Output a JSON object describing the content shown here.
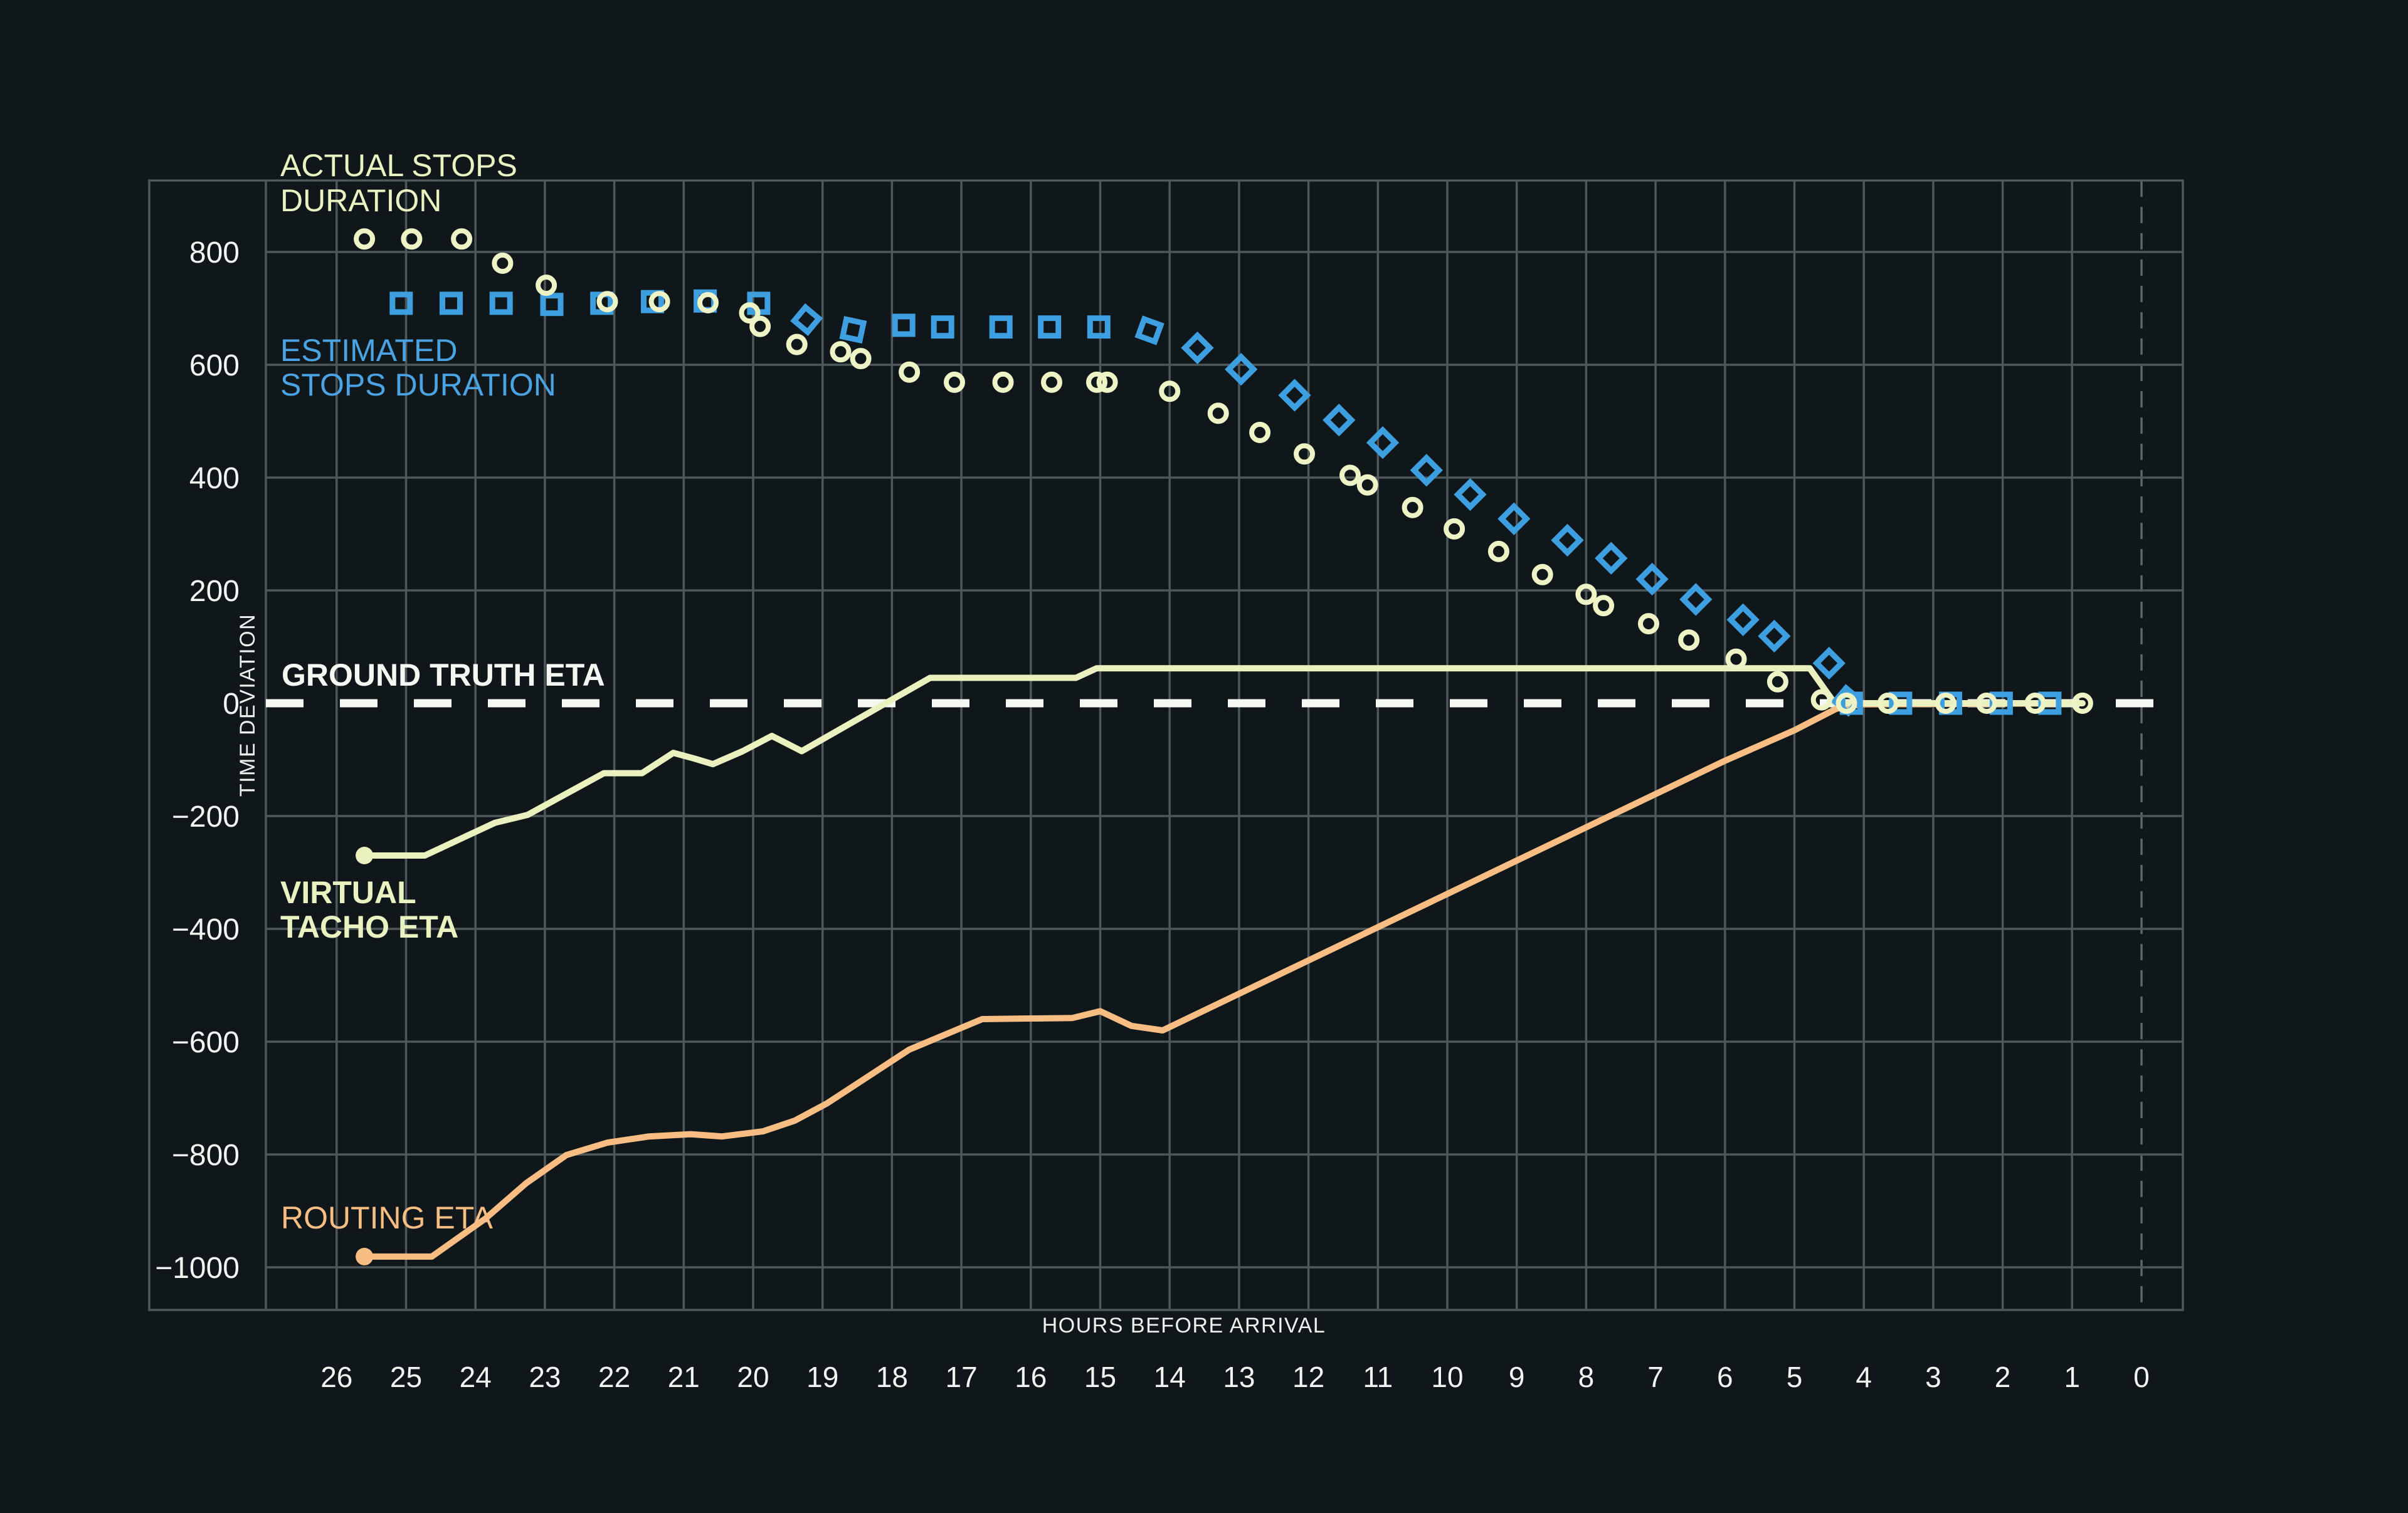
{
  "colors": {
    "background": "#0f171a",
    "grid": "#4e585a",
    "grid_dashed": "#5d6769",
    "white": "#f5f7f3",
    "yellow": "#ebf2c1",
    "blue": "#3d9fe0",
    "orange": "#f7bd83"
  },
  "labels": {
    "actual_stops_1": "ACTUAL STOPS",
    "actual_stops_2": "DURATION",
    "estimated_1": "ESTIMATED",
    "estimated_2": "STOPS DURATION",
    "ground_truth": "GROUND TRUTH ETA",
    "virtual_1": "VIRTUAL",
    "virtual_2": "TACHO ETA",
    "routing": "ROUTING ETA",
    "x_axis_title": "HOURS BEFORE ARRIVAL",
    "y_axis_title": "TIME DEVIATION"
  },
  "chart_data": {
    "type": "mixed",
    "title": "",
    "xlabel": "HOURS BEFORE ARRIVAL",
    "ylabel": "TIME DEVIATION",
    "grid": true,
    "legend_position": "labels drawn inside plot next to each series",
    "x_axis": {
      "unit": "hours before arrival, decreasing left to right",
      "ticks": [
        26,
        25,
        24,
        23,
        22,
        21,
        20,
        19,
        18,
        17,
        16,
        15,
        14,
        13,
        12,
        11,
        10,
        9,
        8,
        7,
        6,
        5,
        4,
        3,
        2,
        1,
        0
      ],
      "tick_labels": [
        "26",
        "25",
        "24",
        "23",
        "22",
        "21",
        "20",
        "19",
        "18",
        "17",
        "16",
        "15",
        "14",
        "13",
        "12",
        "11",
        "10",
        "9",
        "8",
        "7",
        "6",
        "5",
        "4",
        "3",
        "2",
        "1",
        "0"
      ],
      "zero_hour_gridline": "dashed",
      "range": [
        27.1,
        -0.6
      ]
    },
    "y_axis": {
      "ticks": [
        800,
        600,
        400,
        200,
        0,
        -200,
        -400,
        -600,
        -800,
        -1000
      ],
      "tick_labels": [
        "800",
        "600",
        "400",
        "200",
        "0",
        "−200",
        "−400",
        "−600",
        "−800",
        "−1000"
      ],
      "gridline_values": [
        800,
        600,
        400,
        200,
        -200,
        -400,
        -600,
        -800,
        -1000
      ],
      "range": [
        -1070,
        925
      ]
    },
    "series": [
      {
        "name": "ACTUAL STOPS DURATION",
        "type": "scatter",
        "marker": "circle",
        "color": "#edf3c5",
        "points": [
          [
            25.6,
            823
          ],
          [
            24.92,
            823
          ],
          [
            24.2,
            823
          ],
          [
            23.61,
            780
          ],
          [
            22.98,
            741
          ],
          [
            22.1,
            712
          ],
          [
            21.35,
            712
          ],
          [
            20.65,
            710
          ],
          [
            20.05,
            692
          ],
          [
            19.9,
            668
          ],
          [
            19.37,
            636
          ],
          [
            18.74,
            623
          ],
          [
            18.45,
            611
          ],
          [
            17.75,
            587
          ],
          [
            17.1,
            569
          ],
          [
            16.4,
            569
          ],
          [
            15.7,
            569
          ],
          [
            15.05,
            569
          ],
          [
            14.9,
            569
          ],
          [
            14.0,
            553
          ],
          [
            13.3,
            514
          ],
          [
            12.7,
            480
          ],
          [
            12.06,
            442
          ],
          [
            11.4,
            404
          ],
          [
            11.15,
            387
          ],
          [
            10.5,
            347
          ],
          [
            9.9,
            309
          ],
          [
            9.26,
            269
          ],
          [
            8.63,
            228
          ],
          [
            8.0,
            193
          ],
          [
            7.75,
            173
          ],
          [
            7.1,
            141
          ],
          [
            6.52,
            112
          ],
          [
            5.84,
            78
          ],
          [
            5.24,
            38
          ],
          [
            4.61,
            6
          ],
          [
            4.25,
            0
          ],
          [
            3.65,
            0
          ],
          [
            2.82,
            0
          ],
          [
            2.23,
            0
          ],
          [
            1.53,
            0
          ],
          [
            0.85,
            0
          ]
        ]
      },
      {
        "name": "ESTIMATED STOPS DURATION",
        "type": "scatter",
        "marker": "square",
        "color": "#3d9fe0",
        "points_format": "[hour, value, marker_rotation_deg]",
        "points": [
          [
            25.07,
            709,
            0
          ],
          [
            24.35,
            709,
            0
          ],
          [
            23.63,
            709,
            0
          ],
          [
            22.9,
            707,
            0
          ],
          [
            22.18,
            709,
            0
          ],
          [
            21.45,
            712,
            0
          ],
          [
            20.69,
            713,
            0
          ],
          [
            19.92,
            709,
            0
          ],
          [
            19.23,
            680,
            40
          ],
          [
            18.56,
            662,
            12
          ],
          [
            17.83,
            670,
            0
          ],
          [
            17.27,
            667,
            0
          ],
          [
            16.43,
            667,
            0
          ],
          [
            15.73,
            667,
            0
          ],
          [
            15.02,
            667,
            0
          ],
          [
            14.29,
            661,
            20
          ],
          [
            13.6,
            630,
            45
          ],
          [
            12.97,
            592,
            45
          ],
          [
            12.2,
            546,
            45
          ],
          [
            11.56,
            502,
            45
          ],
          [
            10.93,
            462,
            45
          ],
          [
            10.3,
            413,
            45
          ],
          [
            9.67,
            370,
            45
          ],
          [
            9.04,
            327,
            45
          ],
          [
            8.27,
            289,
            45
          ],
          [
            7.64,
            257,
            45
          ],
          [
            7.05,
            220,
            45
          ],
          [
            6.42,
            184,
            45
          ],
          [
            5.74,
            148,
            45
          ],
          [
            5.29,
            119,
            45
          ],
          [
            4.5,
            71,
            45
          ],
          [
            4.24,
            5,
            40
          ],
          [
            4.18,
            0,
            0
          ],
          [
            3.47,
            0,
            0
          ],
          [
            2.75,
            0,
            0
          ],
          [
            2.02,
            0,
            0
          ],
          [
            1.32,
            0,
            0
          ]
        ]
      },
      {
        "name": "GROUND TRUTH ETA",
        "type": "line",
        "style": "dashed",
        "color": "#f5f7f3",
        "value": 0,
        "points": [
          [
            27.0,
            0
          ],
          [
            -0.6,
            0
          ]
        ]
      },
      {
        "name": "VIRTUAL TACHO ETA",
        "type": "line",
        "style": "solid",
        "start_dot": true,
        "color": "#eaf1bf",
        "points": [
          [
            25.6,
            -270
          ],
          [
            24.73,
            -270
          ],
          [
            23.72,
            -212
          ],
          [
            23.25,
            -198
          ],
          [
            22.15,
            -124
          ],
          [
            21.6,
            -124
          ],
          [
            21.15,
            -88
          ],
          [
            20.85,
            -98
          ],
          [
            20.58,
            -108
          ],
          [
            20.15,
            -85
          ],
          [
            19.73,
            -58
          ],
          [
            19.3,
            -85
          ],
          [
            17.45,
            45
          ],
          [
            15.35,
            45
          ],
          [
            15.05,
            62
          ],
          [
            4.78,
            62
          ],
          [
            4.42,
            0
          ],
          [
            0.85,
            0
          ]
        ]
      },
      {
        "name": "ROUTING ETA",
        "type": "line",
        "style": "solid",
        "start_dot": true,
        "color": "#f7bd83",
        "points": [
          [
            25.6,
            -981
          ],
          [
            24.63,
            -981
          ],
          [
            23.86,
            -914
          ],
          [
            23.27,
            -851
          ],
          [
            22.69,
            -801
          ],
          [
            22.1,
            -779
          ],
          [
            21.5,
            -768
          ],
          [
            20.9,
            -764
          ],
          [
            20.45,
            -768
          ],
          [
            19.86,
            -759
          ],
          [
            19.4,
            -740
          ],
          [
            18.93,
            -709
          ],
          [
            17.75,
            -614
          ],
          [
            16.7,
            -560
          ],
          [
            15.4,
            -558
          ],
          [
            15.0,
            -546
          ],
          [
            14.55,
            -572
          ],
          [
            14.1,
            -580
          ],
          [
            12.0,
            -456
          ],
          [
            10.0,
            -338
          ],
          [
            8.0,
            -220
          ],
          [
            6.0,
            -102
          ],
          [
            5.0,
            -48
          ],
          [
            4.4,
            -10
          ],
          [
            4.05,
            -2
          ],
          [
            0.85,
            0
          ]
        ]
      }
    ]
  }
}
